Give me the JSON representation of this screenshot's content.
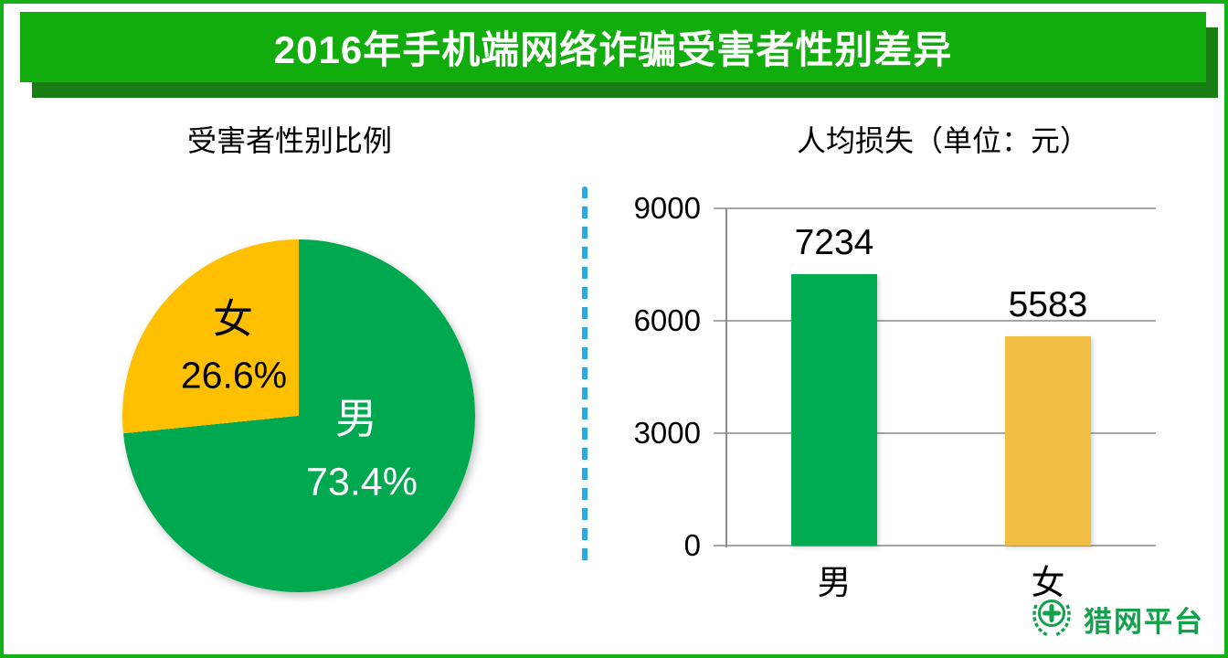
{
  "page": {
    "border_color": "#16B116",
    "background_color": "#FFFFFF"
  },
  "header": {
    "title": "2016年手机端网络诈骗受害者性别差异",
    "banner_color": "#10AD0C",
    "banner_shadow_color": "#187D12",
    "text_color": "#FFFFFF"
  },
  "divider": {
    "style": "dashed-vertical",
    "color": "#29ABE2"
  },
  "logo": {
    "text": "猎网平台",
    "color": "#12A04B",
    "icon": "laurel-wreath-cross-emblem-icon"
  },
  "chart_data": [
    {
      "type": "pie",
      "title": "受害者性别比例",
      "labels": [
        "男",
        "女"
      ],
      "values": [
        73.4,
        26.6
      ],
      "display_labels": [
        "73.4%",
        "26.6%"
      ],
      "colors": [
        "#00A84F",
        "#FEC000"
      ],
      "label_colors": [
        "#FFFFFF",
        "#000000"
      ],
      "start_angle": "12-oclock",
      "direction": "clockwise",
      "legend_position": "none"
    },
    {
      "type": "bar",
      "title": "人均损失（单位：元）",
      "categories": [
        "男",
        "女"
      ],
      "values": [
        7234,
        5583
      ],
      "colors": [
        "#00AB52",
        "#F1BD42"
      ],
      "ylim": [
        0,
        9000
      ],
      "yticks": [
        0,
        3000,
        6000,
        9000
      ],
      "grid": true,
      "xlabel": "",
      "ylabel": "",
      "legend_position": "none"
    }
  ]
}
